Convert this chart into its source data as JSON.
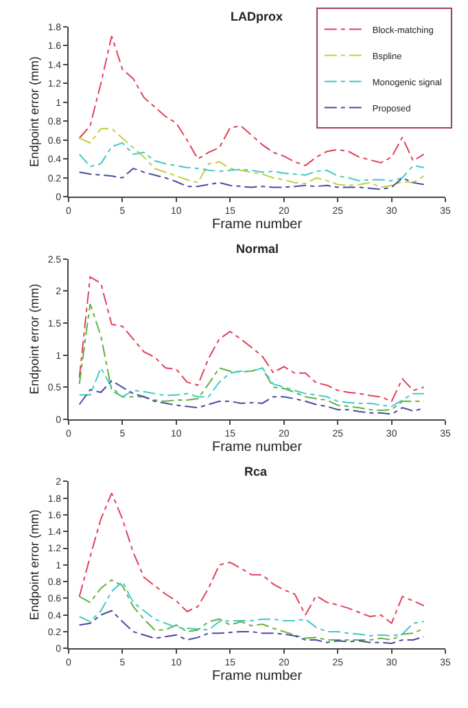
{
  "chart_data": [
    {
      "type": "line",
      "title": "LADprox",
      "xlabel": "Frame number",
      "ylabel": "Endpoint error (mm)",
      "x": [
        1,
        2,
        3,
        4,
        5,
        6,
        7,
        8,
        9,
        10,
        11,
        12,
        13,
        14,
        15,
        16,
        17,
        18,
        19,
        20,
        21,
        22,
        23,
        24,
        25,
        26,
        27,
        28,
        29,
        30,
        31,
        32,
        33
      ],
      "xlim": [
        0,
        35
      ],
      "xticks": [
        0,
        5,
        10,
        15,
        20,
        25,
        30,
        35
      ],
      "ylim": [
        0,
        1.8
      ],
      "yticks": [
        0,
        0.2,
        0.4,
        0.6,
        0.8,
        1,
        1.2,
        1.4,
        1.6,
        1.8
      ],
      "legend": "top right",
      "line_style": "dashed",
      "marker": "none",
      "series": [
        {
          "name": "Block-matching",
          "color": "#e0405a",
          "values": [
            0.62,
            0.75,
            1.2,
            1.7,
            1.35,
            1.25,
            1.05,
            0.95,
            0.85,
            0.78,
            0.6,
            0.4,
            0.47,
            0.52,
            0.73,
            0.75,
            0.65,
            0.55,
            0.47,
            0.43,
            0.37,
            0.33,
            0.42,
            0.48,
            0.5,
            0.48,
            0.42,
            0.39,
            0.36,
            0.42,
            0.63,
            0.38,
            0.45
          ]
        },
        {
          "name": "Bspline",
          "color": "#c0d040",
          "values": [
            0.62,
            0.57,
            0.72,
            0.72,
            0.62,
            0.52,
            0.42,
            0.3,
            0.26,
            0.22,
            0.18,
            0.15,
            0.35,
            0.37,
            0.3,
            0.28,
            0.26,
            0.24,
            0.2,
            0.18,
            0.15,
            0.14,
            0.2,
            0.17,
            0.13,
            0.12,
            0.13,
            0.15,
            0.1,
            0.12,
            0.16,
            0.15,
            0.22
          ]
        },
        {
          "name": "Monogenic signal",
          "color": "#40c8c8",
          "values": [
            0.45,
            0.32,
            0.35,
            0.53,
            0.57,
            0.45,
            0.47,
            0.38,
            0.35,
            0.33,
            0.31,
            0.3,
            0.28,
            0.27,
            0.28,
            0.29,
            0.28,
            0.26,
            0.27,
            0.25,
            0.24,
            0.23,
            0.27,
            0.28,
            0.22,
            0.2,
            0.17,
            0.18,
            0.18,
            0.17,
            0.2,
            0.33,
            0.31
          ]
        },
        {
          "name": "Proposed",
          "color": "#4848a0",
          "values": [
            0.26,
            0.24,
            0.23,
            0.22,
            0.2,
            0.3,
            0.26,
            0.23,
            0.2,
            0.16,
            0.11,
            0.11,
            0.13,
            0.15,
            0.12,
            0.11,
            0.1,
            0.11,
            0.1,
            0.1,
            0.11,
            0.12,
            0.11,
            0.12,
            0.1,
            0.1,
            0.1,
            0.09,
            0.08,
            0.1,
            0.2,
            0.15,
            0.13
          ]
        }
      ]
    },
    {
      "type": "line",
      "title": "Normal",
      "xlabel": "Frame number",
      "ylabel": "Endpoint error (mm)",
      "x": [
        1,
        2,
        3,
        4,
        5,
        6,
        7,
        8,
        9,
        10,
        11,
        12,
        13,
        14,
        15,
        16,
        17,
        18,
        19,
        20,
        21,
        22,
        23,
        24,
        25,
        26,
        27,
        28,
        29,
        30,
        31,
        32,
        33
      ],
      "xlim": [
        0,
        35
      ],
      "xticks": [
        0,
        5,
        10,
        15,
        20,
        25,
        30,
        35
      ],
      "ylim": [
        0,
        2.5
      ],
      "yticks": [
        0,
        0.5,
        1,
        1.5,
        2,
        2.5
      ],
      "legend": false,
      "line_style": "dashed",
      "marker": "none",
      "series": [
        {
          "color": "#e0405a",
          "values": [
            0.65,
            2.22,
            2.12,
            1.48,
            1.45,
            1.25,
            1.05,
            0.97,
            0.8,
            0.78,
            0.58,
            0.53,
            0.95,
            1.25,
            1.37,
            1.25,
            1.12,
            0.98,
            0.73,
            0.82,
            0.72,
            0.72,
            0.57,
            0.53,
            0.45,
            0.42,
            0.4,
            0.37,
            0.35,
            0.28,
            0.63,
            0.45,
            0.5
          ]
        },
        {
          "color": "#60b040",
          "values": [
            0.55,
            1.8,
            1.3,
            0.45,
            0.35,
            0.35,
            0.35,
            0.3,
            0.28,
            0.3,
            0.3,
            0.32,
            0.55,
            0.8,
            0.75,
            0.74,
            0.75,
            0.8,
            0.5,
            0.48,
            0.42,
            0.35,
            0.32,
            0.3,
            0.22,
            0.2,
            0.18,
            0.15,
            0.14,
            0.15,
            0.28,
            0.28,
            0.28
          ]
        },
        {
          "color": "#40c8c8",
          "values": [
            0.38,
            0.38,
            0.8,
            0.5,
            0.35,
            0.45,
            0.43,
            0.4,
            0.37,
            0.38,
            0.4,
            0.35,
            0.35,
            0.58,
            0.72,
            0.75,
            0.75,
            0.8,
            0.55,
            0.5,
            0.45,
            0.4,
            0.38,
            0.35,
            0.28,
            0.26,
            0.25,
            0.25,
            0.22,
            0.2,
            0.3,
            0.4,
            0.4
          ]
        },
        {
          "color": "#4848a0",
          "values": [
            0.23,
            0.46,
            0.42,
            0.6,
            0.5,
            0.4,
            0.35,
            0.28,
            0.25,
            0.22,
            0.2,
            0.18,
            0.23,
            0.28,
            0.28,
            0.25,
            0.26,
            0.25,
            0.35,
            0.35,
            0.32,
            0.28,
            0.23,
            0.2,
            0.15,
            0.15,
            0.12,
            0.1,
            0.1,
            0.08,
            0.18,
            0.13,
            0.17
          ]
        }
      ]
    },
    {
      "type": "line",
      "title": "Rca",
      "xlabel": "Frame number",
      "ylabel": "Endpoint error (mm)",
      "x": [
        1,
        2,
        3,
        4,
        5,
        6,
        7,
        8,
        9,
        10,
        11,
        12,
        13,
        14,
        15,
        16,
        17,
        18,
        19,
        20,
        21,
        22,
        23,
        24,
        25,
        26,
        27,
        28,
        29,
        30,
        31,
        32,
        33
      ],
      "xlim": [
        0,
        35
      ],
      "xticks": [
        0,
        5,
        10,
        15,
        20,
        25,
        30,
        35
      ],
      "ylim": [
        0,
        2
      ],
      "yticks": [
        0,
        0.2,
        0.4,
        0.6,
        0.8,
        1,
        1.2,
        1.4,
        1.6,
        1.8,
        2
      ],
      "legend": false,
      "line_style": "dashed",
      "marker": "none",
      "series": [
        {
          "color": "#e0405a",
          "values": [
            0.62,
            1.1,
            1.55,
            1.86,
            1.55,
            1.15,
            0.85,
            0.75,
            0.65,
            0.57,
            0.44,
            0.5,
            0.72,
            1.0,
            1.03,
            0.96,
            0.88,
            0.88,
            0.77,
            0.7,
            0.65,
            0.4,
            0.63,
            0.55,
            0.52,
            0.48,
            0.43,
            0.38,
            0.4,
            0.3,
            0.62,
            0.57,
            0.51
          ]
        },
        {
          "color": "#60b040",
          "values": [
            0.62,
            0.55,
            0.72,
            0.82,
            0.75,
            0.5,
            0.35,
            0.22,
            0.22,
            0.28,
            0.2,
            0.22,
            0.32,
            0.35,
            0.28,
            0.32,
            0.27,
            0.29,
            0.24,
            0.2,
            0.16,
            0.12,
            0.13,
            0.1,
            0.1,
            0.1,
            0.1,
            0.1,
            0.12,
            0.1,
            0.17,
            0.18,
            0.24
          ]
        },
        {
          "color": "#40c8c8",
          "values": [
            0.38,
            0.32,
            0.45,
            0.68,
            0.8,
            0.55,
            0.45,
            0.35,
            0.3,
            0.25,
            0.24,
            0.23,
            0.22,
            0.32,
            0.33,
            0.33,
            0.33,
            0.35,
            0.35,
            0.33,
            0.33,
            0.35,
            0.25,
            0.2,
            0.2,
            0.18,
            0.17,
            0.15,
            0.16,
            0.15,
            0.17,
            0.3,
            0.32
          ]
        },
        {
          "color": "#4848a0",
          "values": [
            0.28,
            0.3,
            0.4,
            0.45,
            0.32,
            0.2,
            0.16,
            0.12,
            0.14,
            0.16,
            0.1,
            0.13,
            0.18,
            0.18,
            0.19,
            0.2,
            0.2,
            0.18,
            0.18,
            0.17,
            0.15,
            0.1,
            0.1,
            0.07,
            0.09,
            0.08,
            0.09,
            0.07,
            0.07,
            0.06,
            0.1,
            0.1,
            0.14
          ]
        }
      ]
    }
  ]
}
